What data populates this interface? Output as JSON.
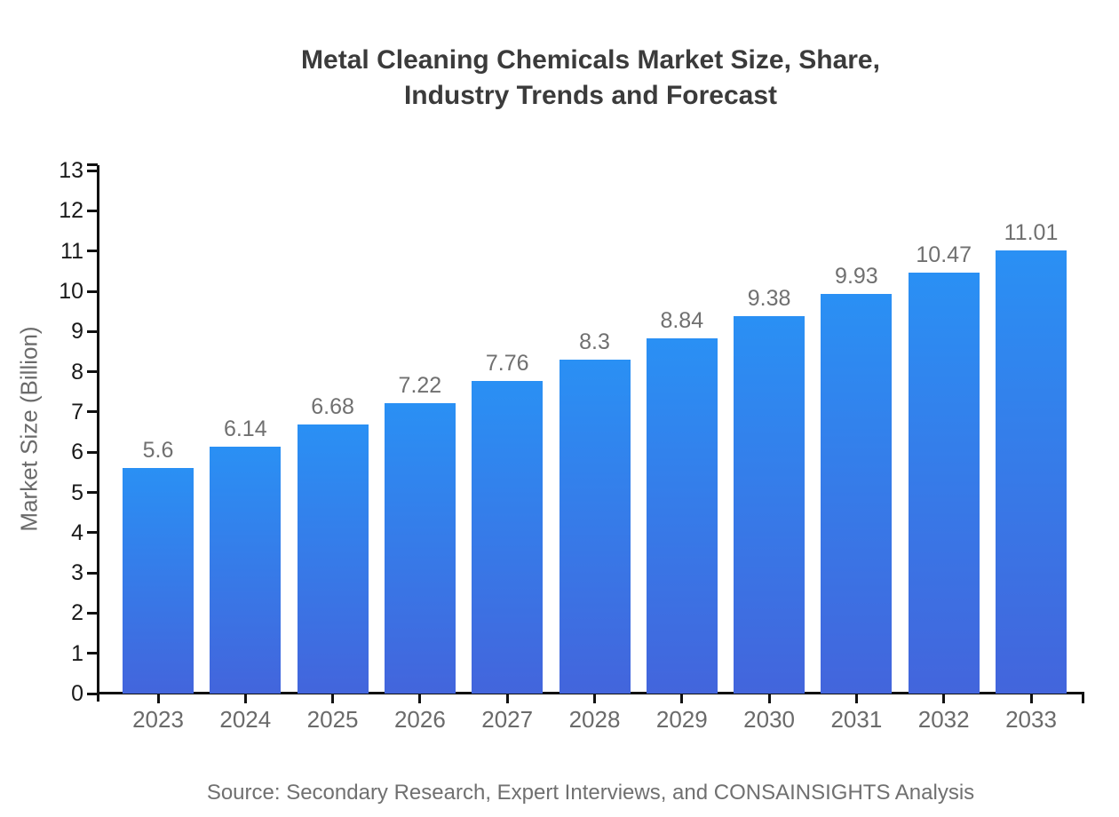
{
  "chart_data": {
    "type": "bar",
    "title": "Metal Cleaning Chemicals Market Size, Share, Industry Trends and Forecast",
    "title_lines": [
      "Metal Cleaning Chemicals Market Size, Share,",
      "Industry Trends and Forecast"
    ],
    "categories": [
      "2023",
      "2024",
      "2025",
      "2026",
      "2027",
      "2028",
      "2029",
      "2030",
      "2031",
      "2032",
      "2033"
    ],
    "values": [
      5.6,
      6.14,
      6.68,
      7.22,
      7.76,
      8.3,
      8.84,
      9.38,
      9.93,
      10.47,
      11.01
    ],
    "value_labels": [
      "5.6",
      "6.14",
      "6.68",
      "7.22",
      "7.76",
      "8.3",
      "8.84",
      "9.38",
      "9.93",
      "10.47",
      "11.01"
    ],
    "xlabel": "",
    "ylabel": "Market Size (Billion)",
    "ylim": [
      0,
      13
    ],
    "y_ticks": [
      0,
      1,
      2,
      3,
      4,
      5,
      6,
      7,
      8,
      9,
      10,
      11,
      12,
      13
    ],
    "grid": false,
    "legend": false,
    "source_note": "Source: Secondary Research, Expert Interviews, and CONSAINSIGHTS Analysis",
    "colors": {
      "bar_gradient_top": "#2a90f4",
      "bar_gradient_bottom": "#4365dc",
      "axis": "#111111",
      "y_tick_label": "#1a1a1a",
      "category_label": "#6a6a6a",
      "value_label": "#707070",
      "title": "#3b3b3b",
      "source": "#707070",
      "background": "#ffffff"
    }
  }
}
